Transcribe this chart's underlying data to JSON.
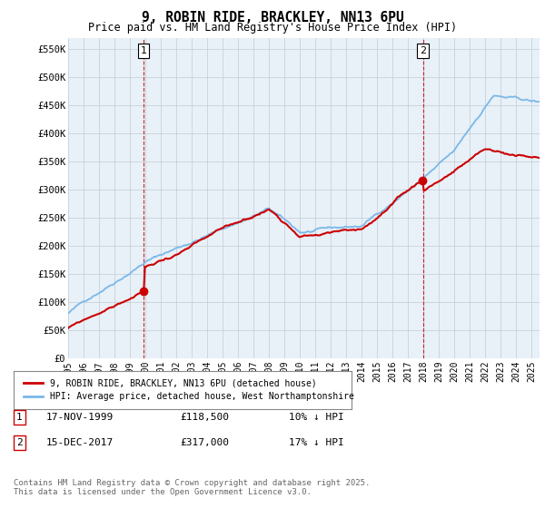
{
  "title": "9, ROBIN RIDE, BRACKLEY, NN13 6PU",
  "subtitle": "Price paid vs. HM Land Registry's House Price Index (HPI)",
  "ylabel_ticks": [
    "£0",
    "£50K",
    "£100K",
    "£150K",
    "£200K",
    "£250K",
    "£300K",
    "£350K",
    "£400K",
    "£450K",
    "£500K",
    "£550K"
  ],
  "ytick_vals": [
    0,
    50000,
    100000,
    150000,
    200000,
    250000,
    300000,
    350000,
    400000,
    450000,
    500000,
    550000
  ],
  "ylim": [
    0,
    570000
  ],
  "xlim_start": 1995.0,
  "xlim_end": 2025.5,
  "sale1_x": 1999.88,
  "sale1_y": 118500,
  "sale2_x": 2017.96,
  "sale2_y": 317000,
  "legend_line1": "9, ROBIN RIDE, BRACKLEY, NN13 6PU (detached house)",
  "legend_line2": "HPI: Average price, detached house, West Northamptonshire",
  "table_row1": [
    "1",
    "17-NOV-1999",
    "£118,500",
    "10% ↓ HPI"
  ],
  "table_row2": [
    "2",
    "15-DEC-2017",
    "£317,000",
    "17% ↓ HPI"
  ],
  "footer": "Contains HM Land Registry data © Crown copyright and database right 2025.\nThis data is licensed under the Open Government Licence v3.0.",
  "hpi_color": "#7ab8e8",
  "price_color": "#cc0000",
  "vline_color": "#cc0000",
  "plot_bg_color": "#e8f0f8",
  "background_color": "#ffffff",
  "grid_color": "#c8d0d8"
}
